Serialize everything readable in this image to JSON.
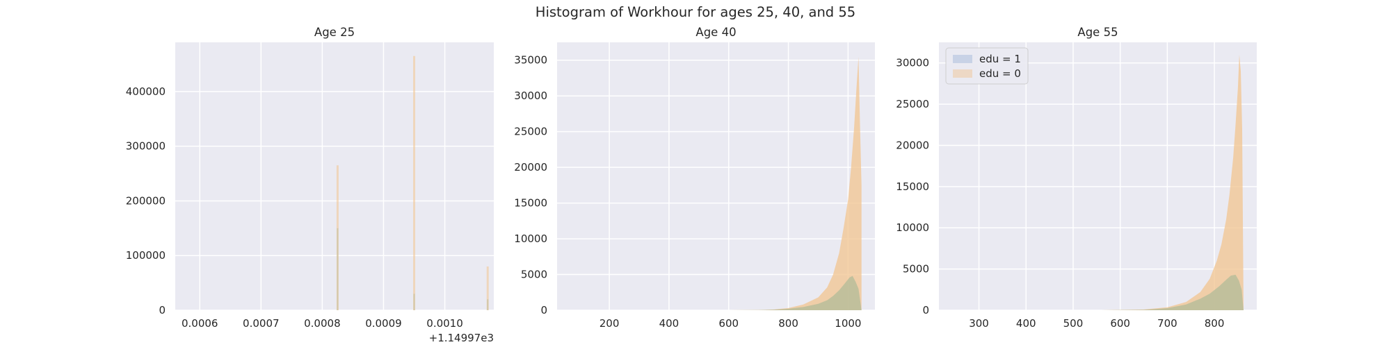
{
  "figure": {
    "title": "Histogram of Workhour for ages 25, 40, and 55"
  },
  "colors": {
    "background": "#eaeaf2",
    "grid": "#ffffff",
    "edu1": "#9fb5d6",
    "edu0": "#f2c48f",
    "overlap": "#b9bd9a",
    "text": "#262626"
  },
  "chart_data": [
    {
      "type": "histogram",
      "title": "Age 25",
      "xlabel": "",
      "ylabel": "",
      "x_offset_label": "+1.14997e3",
      "xlim": [
        0.00056,
        0.00108
      ],
      "ylim": [
        0,
        490000
      ],
      "xticks": [
        0.0006,
        0.0007,
        0.0008,
        0.0009,
        0.001
      ],
      "xtick_labels": [
        "0.0006",
        "0.0007",
        "0.0008",
        "0.0009",
        "0.0010"
      ],
      "yticks": [
        0,
        100000,
        200000,
        300000,
        400000
      ],
      "ytick_labels": [
        "0",
        "100000",
        "200000",
        "300000",
        "400000"
      ],
      "grid": true,
      "legend": null,
      "series": [
        {
          "name": "edu = 1",
          "x": [
            0.000825,
            0.00095,
            0.00107
          ],
          "y": [
            150000,
            30000,
            20000
          ]
        },
        {
          "name": "edu = 0",
          "x": [
            0.000825,
            0.00095,
            0.00107
          ],
          "y": [
            265000,
            465000,
            80000
          ]
        }
      ]
    },
    {
      "type": "histogram",
      "title": "Age 40",
      "xlabel": "",
      "ylabel": "",
      "xlim": [
        25,
        1090
      ],
      "ylim": [
        0,
        37500
      ],
      "xticks": [
        200,
        400,
        600,
        800,
        1000
      ],
      "xtick_labels": [
        "200",
        "400",
        "600",
        "800",
        "1000"
      ],
      "yticks": [
        0,
        5000,
        10000,
        15000,
        20000,
        25000,
        30000,
        35000
      ],
      "ytick_labels": [
        "0",
        "5000",
        "10000",
        "15000",
        "20000",
        "25000",
        "30000",
        "35000"
      ],
      "grid": true,
      "legend": null,
      "series": [
        {
          "name": "edu = 1",
          "x": [
            600,
            700,
            750,
            800,
            850,
            900,
            930,
            950,
            970,
            990,
            1005,
            1015,
            1025,
            1035,
            1045
          ],
          "y": [
            0,
            20,
            80,
            200,
            450,
            900,
            1400,
            2000,
            2800,
            3800,
            4600,
            4800,
            4000,
            3000,
            0
          ]
        },
        {
          "name": "edu = 0",
          "x": [
            600,
            700,
            750,
            800,
            850,
            900,
            930,
            950,
            970,
            985,
            1000,
            1010,
            1020,
            1028,
            1035,
            1040,
            1045
          ],
          "y": [
            0,
            30,
            100,
            300,
            800,
            1800,
            3200,
            5000,
            8000,
            11500,
            15500,
            20000,
            25500,
            31000,
            35500,
            26000,
            17500
          ]
        }
      ]
    },
    {
      "type": "histogram",
      "title": "Age 55",
      "xlabel": "",
      "ylabel": "",
      "xlim": [
        215,
        890
      ],
      "ylim": [
        0,
        32500
      ],
      "xticks": [
        300,
        400,
        500,
        600,
        700,
        800
      ],
      "xtick_labels": [
        "300",
        "400",
        "500",
        "600",
        "700",
        "800"
      ],
      "yticks": [
        0,
        5000,
        10000,
        15000,
        20000,
        25000,
        30000
      ],
      "ytick_labels": [
        "0",
        "5000",
        "10000",
        "15000",
        "20000",
        "25000",
        "30000"
      ],
      "grid": true,
      "legend": {
        "position": "upper left",
        "entries": [
          "edu = 1",
          "edu = 0"
        ]
      },
      "series": [
        {
          "name": "edu = 1",
          "x": [
            560,
            650,
            700,
            740,
            770,
            790,
            810,
            825,
            835,
            845,
            852,
            858,
            862
          ],
          "y": [
            0,
            50,
            250,
            700,
            1400,
            2000,
            2900,
            3700,
            4200,
            4300,
            3600,
            2500,
            0
          ]
        },
        {
          "name": "edu = 0",
          "x": [
            560,
            650,
            700,
            740,
            770,
            790,
            805,
            815,
            825,
            832,
            840,
            845,
            850,
            853,
            856,
            859,
            862
          ],
          "y": [
            0,
            80,
            350,
            1000,
            2200,
            3800,
            6000,
            8000,
            11000,
            14000,
            18500,
            22500,
            27000,
            31000,
            29000,
            22000,
            0
          ]
        }
      ]
    }
  ]
}
